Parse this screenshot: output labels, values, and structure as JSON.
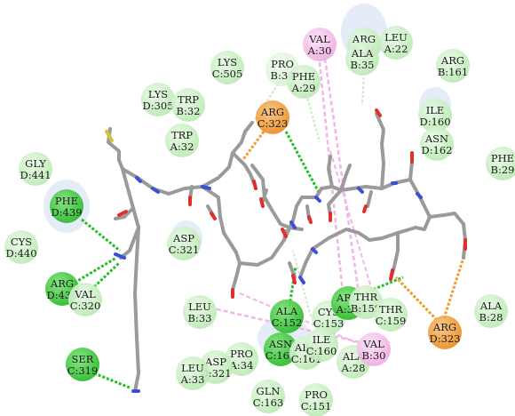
{
  "colors": {
    "background": "#ffffff",
    "van_der_waals": "#c9f0c4",
    "conventional_hbond": "#22c022",
    "carbon_hbond": "#dff5dc",
    "charge_attractive": "#f39a2c",
    "pi_alkyl": "#f2b5e8",
    "solvent_halo": "#dce6f5",
    "ligand_carbon": "#9a9a9a",
    "ligand_oxygen": "#e0302a",
    "ligand_nitrogen": "#3d4fd8",
    "ligand_sulfur": "#d8c040"
  },
  "residues": [
    {
      "id": "lys-c505",
      "line1": "LYS",
      "line2": "C:505",
      "type": "van_der_waals"
    },
    {
      "id": "pro-b34",
      "line1": "PRO",
      "line2": "B:34",
      "type": "carbon_hbond"
    },
    {
      "id": "phe-a29",
      "line1": "PHE",
      "line2": "A:29",
      "type": "van_der_waals"
    },
    {
      "id": "val-a30",
      "line1": "VAL",
      "line2": "A:30",
      "type": "pi_alkyl"
    },
    {
      "id": "arg-b31",
      "line1": "ARG",
      "line2": "B:31",
      "type": "van_der_waals"
    },
    {
      "id": "ala-b35",
      "line1": "ALA",
      "line2": "B:35",
      "type": "van_der_waals"
    },
    {
      "id": "leu-a22",
      "line1": "LEU",
      "line2": "A:22",
      "type": "van_der_waals"
    },
    {
      "id": "arg-b161",
      "line1": "ARG",
      "line2": "B:161",
      "type": "van_der_waals"
    },
    {
      "id": "lys-d305",
      "line1": "LYS",
      "line2": "D:305",
      "type": "van_der_waals"
    },
    {
      "id": "trp-b32",
      "line1": "TRP",
      "line2": "B:32",
      "type": "van_der_waals"
    },
    {
      "id": "arg-c323",
      "line1": "ARG",
      "line2": "C:323",
      "type": "charge_attractive"
    },
    {
      "id": "ile-d160",
      "line1": "ILE",
      "line2": "D:160",
      "type": "van_der_waals"
    },
    {
      "id": "asn-d162",
      "line1": "ASN",
      "line2": "D:162",
      "type": "van_der_waals"
    },
    {
      "id": "phe-b29",
      "line1": "PHE",
      "line2": "B:29",
      "type": "van_der_waals"
    },
    {
      "id": "trp-a32",
      "line1": "TRP",
      "line2": "A:32",
      "type": "van_der_waals"
    },
    {
      "id": "gly-d441",
      "line1": "GLY",
      "line2": "D:441",
      "type": "van_der_waals"
    },
    {
      "id": "phe-d439",
      "line1": "PHE",
      "line2": "D:439",
      "type": "conventional_hbond"
    },
    {
      "id": "cys-d440",
      "line1": "CYS",
      "line2": "D:440",
      "type": "van_der_waals"
    },
    {
      "id": "asp-c321",
      "line1": "ASP",
      "line2": "C:321",
      "type": "van_der_waals"
    },
    {
      "id": "arg-d438",
      "line1": "ARG",
      "line2": "D:438",
      "type": "conventional_hbond"
    },
    {
      "id": "val-c320",
      "line1": "VAL",
      "line2": "C:320",
      "type": "van_der_waals"
    },
    {
      "id": "leu-b33",
      "line1": "LEU",
      "line2": "B:33",
      "type": "van_der_waals"
    },
    {
      "id": "ala-c152",
      "line1": "ALA",
      "line2": "C:152",
      "type": "conventional_hbond"
    },
    {
      "id": "cys-c153",
      "line1": "CYS",
      "line2": "C:153",
      "type": "van_der_waals"
    },
    {
      "id": "arg-a31",
      "line1": "ARG",
      "line2": "A:31",
      "type": "conventional_hbond"
    },
    {
      "id": "thr-b159",
      "line1": "THR",
      "line2": "B:159",
      "type": "van_der_waals"
    },
    {
      "id": "thr-c159",
      "line1": "THR",
      "line2": "C:159",
      "type": "van_der_waals"
    },
    {
      "id": "ala-b28",
      "line1": "ALA",
      "line2": "B:28",
      "type": "van_der_waals"
    },
    {
      "id": "asn-c162",
      "line1": "ASN",
      "line2": "C:162",
      "type": "conventional_hbond"
    },
    {
      "id": "arg-c161",
      "line1": "ARG",
      "line2": "C:161",
      "type": "van_der_waals"
    },
    {
      "id": "ile-c160",
      "line1": "ILE",
      "line2": "C:160",
      "type": "van_der_waals"
    },
    {
      "id": "ala-a28",
      "line1": "ALA",
      "line2": "A:28",
      "type": "van_der_waals"
    },
    {
      "id": "val-b30",
      "line1": "VAL",
      "line2": "B:30",
      "type": "pi_alkyl"
    },
    {
      "id": "arg-d323",
      "line1": "ARG",
      "line2": "D:323",
      "type": "charge_attractive"
    },
    {
      "id": "ser-c319",
      "line1": "SER",
      "line2": "C:319",
      "type": "conventional_hbond"
    },
    {
      "id": "pro-a34",
      "line1": "PRO",
      "line2": "A:34",
      "type": "van_der_waals"
    },
    {
      "id": "asp-d321",
      "line1": "ASP",
      "line2": "D:321",
      "type": "van_der_waals"
    },
    {
      "id": "leu-a33",
      "line1": "LEU",
      "line2": "A:33",
      "type": "van_der_waals"
    },
    {
      "id": "gln-c163",
      "line1": "GLN",
      "line2": "C:163",
      "type": "van_der_waals"
    },
    {
      "id": "pro-c151",
      "line1": "PRO",
      "line2": "C:151",
      "type": "van_der_waals"
    }
  ]
}
